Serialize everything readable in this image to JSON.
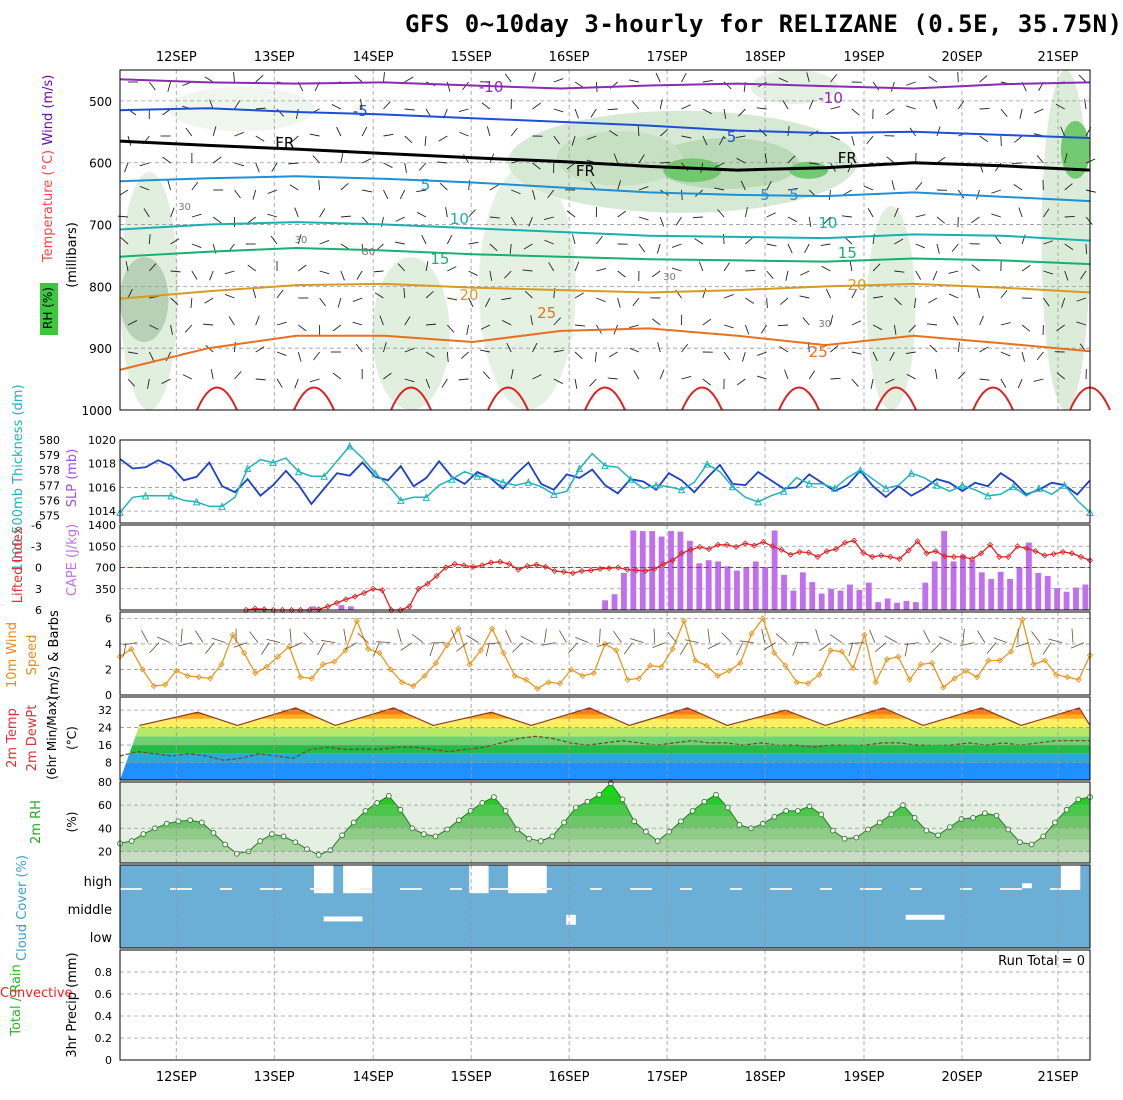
{
  "chart_data": {
    "type": "meteogram",
    "title": "GFS 0~10day 3-hourly for RELIZANE (0.5E, 35.75N)",
    "x_dates": [
      "12SEP",
      "13SEP",
      "14SEP",
      "15SEP",
      "16SEP",
      "17SEP",
      "18SEP",
      "19SEP",
      "20SEP",
      "21SEP"
    ],
    "colors": {
      "wind": "#000000",
      "freezing": "#000000",
      "cloud_bg": "#6baed6",
      "cape": "#c070ee",
      "lifted": "#dd2222",
      "slp": "#1a3fcf",
      "thickness": "#20b2c0",
      "wind10": "#e89820",
      "temp_fill": "#e84a10",
      "rh_fill": "#22cc22",
      "grid": "#999999"
    },
    "panels": [
      {
        "name": "upper-air",
        "ylabel_parts": [
          "RH (%)",
          "Temperature (°C)",
          "Wind (m/s)"
        ],
        "ylabel_units": "(millibars)",
        "y_ticks": [
          500,
          600,
          700,
          800,
          900,
          1000
        ],
        "ylim": [
          450,
          1000
        ],
        "isotherms": [
          {
            "label": "-10",
            "color": "#8a2bb0",
            "level": [
              465,
              470,
              472,
              470,
              475,
              480,
              475,
              472,
              476,
              480,
              473,
              470
            ]
          },
          {
            "label": "-5",
            "color": "#1f4fd6",
            "level": [
              515,
              512,
              518,
              522,
              528,
              534,
              540,
              548,
              552,
              550,
              555,
              560
            ]
          },
          {
            "label": "FR",
            "color": "#000000",
            "level": [
              565,
              572,
              578,
              585,
              592,
              598,
              606,
              612,
              608,
              600,
              605,
              612
            ]
          },
          {
            "label": "5",
            "color": "#1f8fd6",
            "level": [
              630,
              625,
              622,
              626,
              632,
              640,
              648,
              652,
              654,
              648,
              655,
              662
            ]
          },
          {
            "label": "10",
            "color": "#18b0b0",
            "level": [
              708,
              700,
              696,
              700,
              706,
              712,
              718,
              720,
              722,
              716,
              718,
              726
            ]
          },
          {
            "label": "15",
            "color": "#18b070",
            "level": [
              752,
              744,
              738,
              742,
              748,
              752,
              756,
              758,
              760,
              755,
              758,
              764
            ]
          },
          {
            "label": "20",
            "color": "#d89a20",
            "level": [
              820,
              808,
              798,
              796,
              802,
              806,
              810,
              806,
              800,
              796,
              802,
              810
            ]
          },
          {
            "label": "25",
            "color": "#e87020",
            "level": [
              935,
              900,
              880,
              880,
              890,
              872,
              868,
              880,
              895,
              880,
              892,
              905
            ]
          }
        ],
        "contour_labels": [
          "-10",
          "-10",
          "-5",
          "-5",
          "FR",
          "FR",
          "FR",
          "5",
          "5",
          "5",
          "10",
          "10",
          "15",
          "15",
          "20",
          "20",
          "25",
          "25",
          "30",
          "30",
          "30",
          "30",
          "30"
        ]
      },
      {
        "name": "slp-thickness",
        "ylabel_left": "1000-500mb Thickness (dm)",
        "ylabel_right": "SLP (mb)",
        "left_ticks": [
          "580",
          "579",
          "578",
          "577",
          "576",
          "575"
        ],
        "right_ticks": [
          "1020",
          "1018",
          "1016",
          "1014"
        ],
        "left_range": [
          574.5,
          580
        ],
        "right_range": [
          1013,
          1020
        ],
        "slp": [
          1018.4,
          1017.6,
          1017.7,
          1018.3,
          1017.8,
          1016.6,
          1016.9,
          1018.1,
          1016.1,
          1015.6,
          1016.7,
          1015.3,
          1016.2,
          1017.4,
          1016.2,
          1014.6,
          1015.9,
          1017.2,
          1017.0,
          1018.1,
          1016.9,
          1016.6,
          1017.8,
          1016.1,
          1016.8,
          1018.2,
          1016.9,
          1016.3,
          1017.3,
          1016.8,
          1015.9,
          1017.1,
          1018.1,
          1016.3,
          1015.8,
          1017.1,
          1016.8,
          1017.5,
          1016.2,
          1015.5,
          1016.7,
          1016.5,
          1015.8,
          1017.2,
          1016.6,
          1015.6,
          1016.8,
          1017.9,
          1016.3,
          1016.2,
          1017.3,
          1016.6,
          1015.9,
          1016.0,
          1017.1,
          1016.4,
          1015.7,
          1016.2,
          1017.4,
          1016.1,
          1015.2,
          1016.1,
          1015.3,
          1015.9,
          1016.7,
          1016.4,
          1015.7,
          1016.4,
          1016.1,
          1017.2,
          1016.5,
          1015.4,
          1015.8,
          1016.4,
          1016.2,
          1015.4,
          1016.6
        ],
        "thickness": [
          575.2,
          576.2,
          576.3,
          576.3,
          576.3,
          576.0,
          575.9,
          575.6,
          575.6,
          576.2,
          578.1,
          578.7,
          578.5,
          578.8,
          577.9,
          577.6,
          577.6,
          578.6,
          579.6,
          578.8,
          577.8,
          577.0,
          576.0,
          576.2,
          576.2,
          577.0,
          577.4,
          577.9,
          577.6,
          577.5,
          577.2,
          577.0,
          577.2,
          576.9,
          576.4,
          576.6,
          578.1,
          579.1,
          578.3,
          578.2,
          577.4,
          576.8,
          577.0,
          576.9,
          576.7,
          577.2,
          578.4,
          577.9,
          576.9,
          576.2,
          575.9,
          576.3,
          576.6,
          577.5,
          577.1,
          577.1,
          576.8,
          577.5,
          578.0,
          577.4,
          576.8,
          577.0,
          577.8,
          577.5,
          577.0,
          576.6,
          577.0,
          576.7,
          576.3,
          576.4,
          576.9,
          576.3,
          576.8,
          576.4,
          577.0,
          576.0,
          575.2
        ]
      },
      {
        "name": "cape-li",
        "ylabel_left": "Lifted Index",
        "ylabel_right": "CAPE (J/kg)",
        "left_ticks": [
          "-6",
          "-3",
          "0",
          "3",
          "6"
        ],
        "right_ticks": [
          "1400",
          "1050",
          "700",
          "350"
        ],
        "cape_max": 1400,
        "li_range": [
          6,
          -6
        ],
        "cape": [
          0,
          0,
          0,
          0,
          0,
          0,
          0,
          0,
          0,
          0,
          0,
          0,
          0,
          0,
          0,
          0,
          0,
          0,
          0,
          0,
          60,
          0,
          0,
          80,
          60,
          0,
          0,
          0,
          0,
          0,
          0,
          0,
          0,
          0,
          0,
          0,
          0,
          0,
          0,
          0,
          0,
          0,
          0,
          0,
          0,
          0,
          0,
          0,
          0,
          0,
          0,
          160,
          260,
          610,
          1310,
          1300,
          1300,
          1210,
          1300,
          1290,
          1140,
          770,
          820,
          800,
          720,
          650,
          700,
          800,
          710,
          1310,
          580,
          320,
          620,
          460,
          270,
          350,
          320,
          420,
          330,
          450,
          130,
          190,
          120,
          150,
          130,
          450,
          800,
          1300,
          800,
          910,
          820,
          620,
          510,
          630,
          510,
          700,
          1110,
          610,
          560,
          360,
          300,
          370,
          420
        ],
        "li": [
          6.5,
          5.8,
          5.9,
          6.1,
          6.3,
          6.1,
          6.5,
          6.4,
          5.9,
          5.5,
          5.0,
          4.5,
          4.1,
          3.6,
          3.0,
          3.2,
          6.8,
          7.5,
          5.5,
          3.0,
          2.3,
          1.2,
          0.0,
          -0.5,
          -0.3,
          -0.1,
          -0.3,
          -0.7,
          -0.8,
          -0.5,
          0.3,
          -0.2,
          -0.4,
          -0.1,
          0.5,
          0.6,
          0.8,
          0.5,
          0.4,
          0.2,
          0.1,
          0.0,
          0.3,
          0.4,
          0.5,
          0.2,
          -0.5,
          -1.0,
          -2.0,
          -2.5,
          -2.9,
          -2.6,
          -3.2,
          -3.2,
          -2.9,
          -3.4,
          -3.1,
          -3.6,
          -3.0,
          -2.5,
          -1.8,
          -2.2,
          -2.1,
          -1.5,
          -2.3,
          -2.6,
          -3.5,
          -3.8,
          -2.1,
          -1.5,
          -1.7,
          -1.5,
          -1.2,
          -2.4,
          -3.7,
          -2.0,
          -2.3,
          -1.6,
          -1.5,
          -1.5,
          -1.2,
          -2.0,
          -3.2,
          -1.5,
          -1.5,
          -3.0,
          -2.7,
          -2.3,
          -1.7,
          -1.9,
          -2.2,
          -2.0,
          -1.5,
          -1.0
        ],
        "li_dashed_zero": true
      },
      {
        "name": "wind10",
        "ylabel": "10m Wind Speed (m/s) & Barbs",
        "ticks": [
          "6",
          "4",
          "2",
          "0"
        ],
        "ylim": [
          0,
          6.5
        ],
        "speed": [
          3.0,
          3.6,
          2.0,
          0.7,
          0.8,
          1.9,
          1.5,
          1.4,
          1.3,
          2.4,
          4.7,
          3.3,
          1.7,
          2.2,
          3.0,
          3.8,
          1.4,
          1.3,
          2.4,
          2.6,
          3.5,
          5.8,
          3.6,
          3.3,
          2.0,
          1.0,
          0.7,
          1.5,
          2.5,
          3.9,
          5.2,
          2.4,
          3.5,
          5.2,
          3.3,
          1.5,
          1.2,
          0.5,
          1.0,
          0.9,
          2.0,
          1.5,
          1.7,
          4.0,
          3.5,
          1.2,
          1.3,
          2.3,
          2.2,
          3.6,
          5.8,
          2.7,
          2.3,
          1.5,
          1.9,
          2.5,
          4.8,
          6.0,
          3.3,
          2.3,
          1.0,
          0.9,
          1.6,
          3.5,
          3.4,
          2.1,
          4.7,
          1.0,
          2.8,
          3.0,
          1.2,
          2.4,
          2.5,
          0.6,
          1.3,
          1.9,
          1.4,
          2.7,
          2.7,
          3.4,
          5.9,
          2.4,
          2.7,
          1.6,
          1.4,
          1.2,
          3.1
        ]
      },
      {
        "name": "t2m",
        "ylabel": "2m Temp 2m DewPt (6hr Min/Max) (°C)",
        "ticks": [
          "32",
          "24",
          "16",
          "8"
        ],
        "ylim": [
          0,
          38
        ],
        "temp_peaks": [
          31,
          33,
          33,
          31,
          33,
          33,
          32,
          33,
          33,
          33
        ],
        "temp_troughs": [
          25,
          25,
          25,
          25,
          25,
          25,
          25,
          25,
          25,
          25
        ],
        "dewpoint": [
          11,
          13,
          12,
          11,
          12,
          11,
          9,
          10,
          12,
          11,
          10,
          14,
          15,
          14,
          14,
          14,
          15,
          15,
          14,
          13,
          14,
          15,
          17,
          19,
          20,
          19,
          17,
          16,
          17,
          18,
          17,
          16,
          17,
          18,
          17,
          17,
          16,
          17,
          16,
          16,
          15,
          16,
          16,
          16,
          17,
          17,
          16,
          16,
          16,
          17,
          16,
          17,
          16,
          17,
          18,
          18,
          18
        ]
      },
      {
        "name": "rh2m",
        "ylabel": "2m RH",
        "ylabel_units": "(%)",
        "ticks": [
          "80",
          "60",
          "40",
          "20"
        ],
        "ylim": [
          10,
          80
        ],
        "rh": [
          27,
          29,
          35,
          40,
          44,
          46,
          47,
          45,
          36,
          26,
          18,
          20,
          29,
          35,
          33,
          28,
          22,
          17,
          21,
          34,
          45,
          55,
          62,
          68,
          56,
          40,
          35,
          33,
          39,
          47,
          55,
          62,
          67,
          55,
          39,
          31,
          29,
          33,
          45,
          58,
          63,
          69,
          79,
          65,
          46,
          37,
          29,
          37,
          46,
          55,
          63,
          69,
          58,
          43,
          40,
          44,
          50,
          55,
          55,
          59,
          52,
          38,
          31,
          32,
          39,
          45,
          52,
          60,
          49,
          38,
          34,
          41,
          48,
          49,
          53,
          51,
          39,
          28,
          26,
          33,
          45,
          56,
          65,
          67
        ]
      },
      {
        "name": "cloud",
        "ylabel": "Cloud Cover (%)",
        "levels": [
          "high",
          "middle",
          "low"
        ]
      },
      {
        "name": "precip",
        "ylabel_left": "Total / Rain",
        "ylabel_left2": "Convective",
        "ylabel": "3hr Precip (mm)",
        "ticks": [
          "0.8",
          "0.6",
          "0.4",
          "0.2",
          "0"
        ],
        "ylim": [
          0,
          1.0
        ],
        "run_total_label": "Run Total = 0",
        "values": []
      }
    ]
  }
}
